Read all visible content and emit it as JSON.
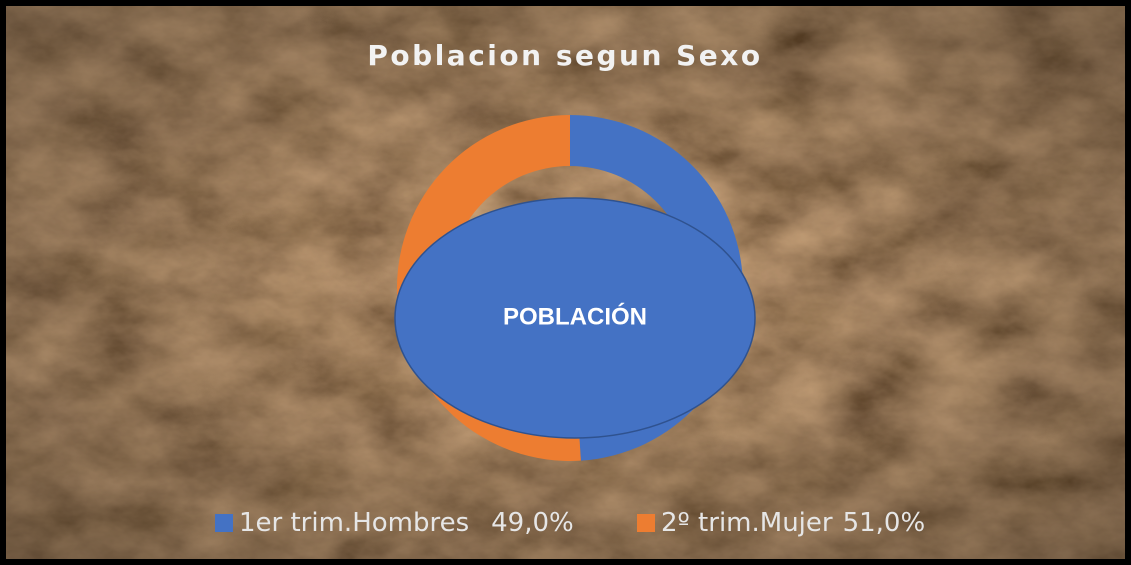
{
  "chart_data": {
    "type": "doughnut",
    "title": "Poblacion segun Sexo",
    "center_label": "POBLACIÓN",
    "categories": [
      "1er trim.Hombres",
      "2º trim.Mujer"
    ],
    "values": [
      49,
      51
    ],
    "value_labels": [
      "49,0%",
      "51,0%"
    ],
    "colors": [
      "#4472c4",
      "#ed7d31"
    ],
    "legend": "bottom"
  }
}
